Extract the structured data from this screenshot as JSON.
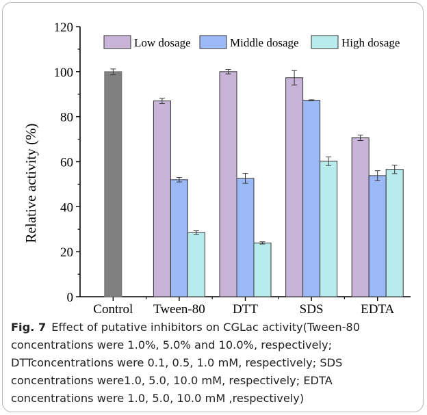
{
  "chart_data": {
    "type": "bar",
    "categories": [
      "Control",
      "Tween-80",
      "DTT",
      "SDS",
      "EDTA"
    ],
    "ylabel": "Relative activity (%)",
    "ylim": [
      0,
      120
    ],
    "yticks": [
      0,
      20,
      40,
      60,
      80,
      100,
      120
    ],
    "grid": false,
    "legend": "top-right",
    "control": {
      "value": 100.0,
      "error": 1.2,
      "color": "#808080"
    },
    "series": [
      {
        "name": "Low dosage",
        "color": "#c8b4d8",
        "values": [
          null,
          87.0,
          100.0,
          97.3,
          70.6
        ],
        "errors": [
          null,
          1.2,
          1.0,
          3.2,
          1.2
        ]
      },
      {
        "name": "Middle dosage",
        "color": "#9bb9f5",
        "values": [
          null,
          52.0,
          52.6,
          87.3,
          53.8
        ],
        "errors": [
          null,
          1.0,
          2.2,
          0.2,
          2.2
        ]
      },
      {
        "name": "High dosage",
        "color": "#b8ecec",
        "values": [
          null,
          28.5,
          23.9,
          60.2,
          56.6
        ],
        "errors": [
          null,
          0.8,
          0.5,
          1.9,
          1.9
        ]
      }
    ]
  },
  "caption": {
    "label": "Fig. 7",
    "text": "Effect of putative inhibitors on CGLac activity(Tween-80 concentrations were 1.0%, 5.0% and 10.0%, respectively; DTTconcentrations were 0.1, 0.5, 1.0 mM, respectively; SDS concentrations were1.0, 5.0, 10.0 mM, respectively; EDTA concentrations were 1.0, 5.0, 10.0 mM ,respectively)"
  }
}
